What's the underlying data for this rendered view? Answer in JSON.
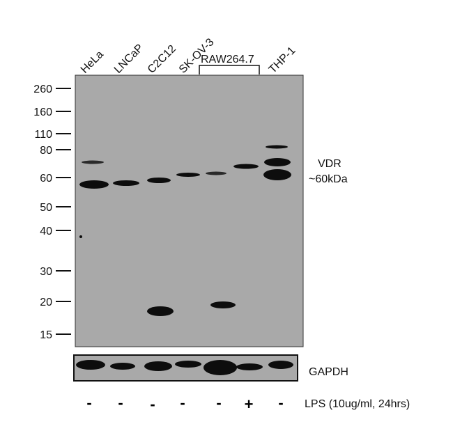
{
  "lanes": [
    "HeLa",
    "LNCaP",
    "C2C12",
    "SK-OV-3",
    "THP-1"
  ],
  "group_label": "RAW264.7",
  "markers": [
    "260",
    "160",
    "110",
    "80",
    "60",
    "50",
    "40",
    "30",
    "20",
    "15"
  ],
  "target_label": "VDR",
  "target_size": "~60kDa",
  "loading_control": "GAPDH",
  "treatment": {
    "label": "LPS (10ug/ml, 24hrs)",
    "signs": [
      "-",
      "-",
      "-",
      "-",
      "-",
      "+",
      "-"
    ]
  },
  "colors": {
    "membrane": "#a9a9a9",
    "band": "#0d0d0d"
  }
}
